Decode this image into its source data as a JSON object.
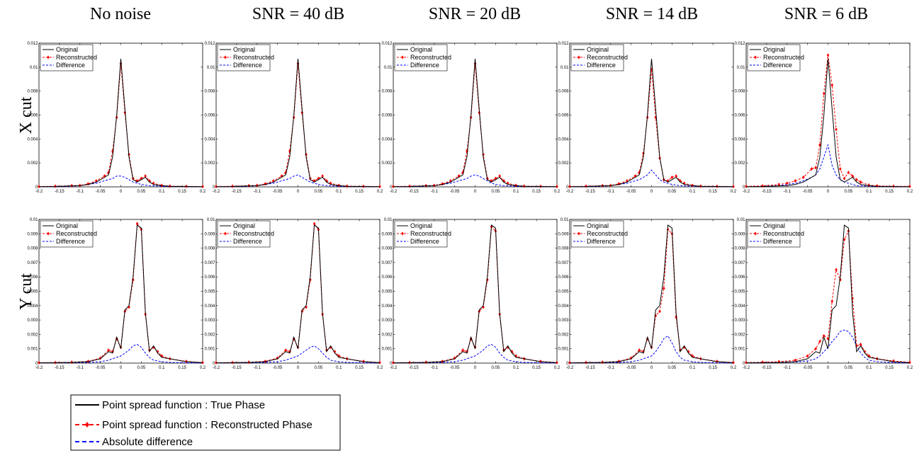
{
  "column_titles": [
    "No noise",
    "SNR = 40 dB",
    "SNR = 20 dB",
    "SNR = 14 dB",
    "SNR = 6 dB"
  ],
  "row_labels": [
    "X cut",
    "Y cut"
  ],
  "panel_legend": [
    "Original",
    "Reconstructed",
    "Difference"
  ],
  "figure_legend": [
    "Point spread function : True Phase",
    "Point spread function : Reconstructed Phase",
    "Absolute difference"
  ],
  "colors": {
    "original": "#000000",
    "reconstructed": "#ff0000",
    "difference": "#0000ff"
  },
  "chart_data": [
    {
      "type": "line",
      "row": "X cut",
      "xlim": [
        -0.2,
        0.2
      ],
      "ylim": [
        0,
        0.012
      ],
      "xticks": [
        "-0.2",
        "-0.15",
        "-0.1",
        "-0.05",
        "0",
        "0.05",
        "0.1",
        "0.15",
        "0.2"
      ],
      "yticks": [
        "0",
        "0.002",
        "0.004",
        "0.006",
        "0.008",
        "0.01",
        "0.012"
      ],
      "x": [
        -0.2,
        -0.16,
        -0.12,
        -0.1,
        -0.08,
        -0.06,
        -0.04,
        -0.03,
        -0.02,
        -0.01,
        0,
        0.01,
        0.02,
        0.03,
        0.04,
        0.05,
        0.06,
        0.07,
        0.08,
        0.1,
        0.12,
        0.16,
        0.2
      ],
      "original": [
        2e-05,
        3e-05,
        8e-05,
        0.0001,
        0.0002,
        0.0004,
        0.0008,
        0.001,
        0.0025,
        0.006,
        0.0107,
        0.0065,
        0.0025,
        0.0006,
        0.0004,
        0.0006,
        0.0008,
        0.0004,
        0.0002,
        0.0001,
        5e-05,
        3e-05,
        2e-05
      ],
      "reconstructed_by_column": [
        [
          3e-05,
          5e-05,
          0.0001,
          0.00012,
          0.00025,
          0.0005,
          0.0009,
          0.0012,
          0.003,
          0.0058,
          0.0103,
          0.0062,
          0.0027,
          0.0007,
          0.0005,
          0.0007,
          0.0009,
          0.0005,
          0.0003,
          0.00012,
          6e-05,
          4e-05,
          3e-05
        ],
        [
          3e-05,
          5e-05,
          0.0001,
          0.00012,
          0.00025,
          0.0005,
          0.0009,
          0.0012,
          0.003,
          0.0058,
          0.0103,
          0.0062,
          0.0027,
          0.0007,
          0.0005,
          0.0007,
          0.0009,
          0.0005,
          0.0003,
          0.00012,
          6e-05,
          4e-05,
          3e-05
        ],
        [
          3e-05,
          5e-05,
          0.0001,
          0.00012,
          0.00025,
          0.0005,
          0.0009,
          0.0012,
          0.003,
          0.0058,
          0.0103,
          0.0062,
          0.0027,
          0.0007,
          0.0005,
          0.0007,
          0.0009,
          0.0005,
          0.0003,
          0.00012,
          6e-05,
          4e-05,
          3e-05
        ],
        [
          3e-05,
          5e-05,
          0.0001,
          0.00012,
          0.00025,
          0.0005,
          0.0009,
          0.0012,
          0.0028,
          0.0058,
          0.0098,
          0.0058,
          0.0024,
          0.0006,
          0.0005,
          0.0008,
          0.0009,
          0.0005,
          0.0003,
          0.00012,
          6e-05,
          4e-05,
          3e-05
        ],
        [
          4e-05,
          8e-05,
          0.0002,
          0.0003,
          0.0005,
          0.0008,
          0.0015,
          0.0016,
          0.0035,
          0.0078,
          0.011,
          0.0085,
          0.0048,
          0.0015,
          0.0007,
          0.0012,
          0.0009,
          0.0006,
          0.0004,
          0.00015,
          8e-05,
          5e-05,
          4e-05
        ]
      ],
      "difference_by_column": [
        [
          1e-05,
          2e-05,
          5e-05,
          0.0001,
          0.0002,
          0.0003,
          0.0005,
          0.0006,
          0.0007,
          0.0009,
          0.0009,
          0.0008,
          0.0006,
          0.0004,
          0.0003,
          0.0002,
          0.00015,
          0.0001,
          8e-05,
          5e-05,
          3e-05,
          2e-05,
          1e-05
        ],
        [
          1e-05,
          2e-05,
          5e-05,
          0.0001,
          0.0002,
          0.0003,
          0.0005,
          0.0006,
          0.0007,
          0.0009,
          0.001,
          0.0008,
          0.0006,
          0.0004,
          0.0003,
          0.0002,
          0.00015,
          0.0001,
          8e-05,
          5e-05,
          3e-05,
          2e-05,
          1e-05
        ],
        [
          1e-05,
          2e-05,
          5e-05,
          0.0001,
          0.0002,
          0.0003,
          0.0005,
          0.0006,
          0.0007,
          0.0009,
          0.001,
          0.0009,
          0.0007,
          0.0005,
          0.0003,
          0.0002,
          0.00015,
          0.0001,
          8e-05,
          5e-05,
          3e-05,
          2e-05,
          1e-05
        ],
        [
          1e-05,
          2e-05,
          5e-05,
          0.0001,
          0.0002,
          0.0003,
          0.0005,
          0.0006,
          0.0008,
          0.001,
          0.0014,
          0.001,
          0.0006,
          0.0004,
          0.0003,
          0.0002,
          0.00015,
          0.0001,
          8e-05,
          5e-05,
          3e-05,
          2e-05,
          1e-05
        ],
        [
          2e-05,
          5e-05,
          0.0001,
          0.0002,
          0.0003,
          0.0005,
          0.0008,
          0.001,
          0.0015,
          0.0025,
          0.0035,
          0.0018,
          0.001,
          0.0006,
          0.0004,
          0.0003,
          0.0002,
          0.0001,
          8e-05,
          5e-05,
          3e-05,
          2e-05,
          1e-05
        ]
      ]
    },
    {
      "type": "line",
      "row": "Y cut",
      "xlim": [
        -0.2,
        0.2
      ],
      "ylim": [
        0,
        0.01
      ],
      "xticks": [
        "-0.2",
        "-0.15",
        "-0.1",
        "-0.05",
        "0",
        "0.05",
        "0.1",
        "0.15",
        "0.2"
      ],
      "yticks": [
        "0",
        "0.001",
        "0.002",
        "0.003",
        "0.004",
        "0.005",
        "0.006",
        "0.007",
        "0.008",
        "0.009",
        "0.01"
      ],
      "x": [
        -0.2,
        -0.16,
        -0.12,
        -0.08,
        -0.05,
        -0.03,
        -0.02,
        -0.01,
        0,
        0.01,
        0.02,
        0.03,
        0.04,
        0.05,
        0.06,
        0.07,
        0.08,
        0.09,
        0.1,
        0.12,
        0.16,
        0.2
      ],
      "original": [
        2e-05,
        3e-05,
        5e-05,
        0.0001,
        0.0003,
        0.0008,
        0.0007,
        0.0018,
        0.001,
        0.0037,
        0.004,
        0.006,
        0.0096,
        0.0094,
        0.0035,
        0.0008,
        0.0012,
        0.0007,
        0.0004,
        0.0003,
        0.0001,
        3e-05
      ],
      "reconstructed_by_column": [
        [
          3e-05,
          4e-05,
          6e-05,
          0.00012,
          0.00035,
          0.0009,
          0.0008,
          0.0017,
          0.0011,
          0.0036,
          0.0039,
          0.0058,
          0.0097,
          0.0093,
          0.0034,
          0.0009,
          0.0011,
          0.0008,
          0.0005,
          0.0003,
          0.00012,
          4e-05
        ],
        [
          3e-05,
          4e-05,
          6e-05,
          0.00012,
          0.00035,
          0.0009,
          0.0008,
          0.0017,
          0.0011,
          0.0036,
          0.0039,
          0.0058,
          0.0097,
          0.0093,
          0.0034,
          0.0009,
          0.0011,
          0.0008,
          0.0005,
          0.0003,
          0.00012,
          4e-05
        ],
        [
          3e-05,
          4e-05,
          6e-05,
          0.00012,
          0.00035,
          0.0009,
          0.0008,
          0.0017,
          0.0011,
          0.0036,
          0.0039,
          0.0058,
          0.0095,
          0.0092,
          0.0034,
          0.0009,
          0.0011,
          0.0008,
          0.0005,
          0.0003,
          0.00012,
          4e-05
        ],
        [
          3e-05,
          4e-05,
          6e-05,
          0.00012,
          0.00035,
          0.0009,
          0.0008,
          0.0017,
          0.0011,
          0.0033,
          0.0036,
          0.0052,
          0.0093,
          0.009,
          0.0032,
          0.0009,
          0.0011,
          0.0008,
          0.0005,
          0.0003,
          0.00012,
          4e-05
        ],
        [
          4e-05,
          6e-05,
          0.0001,
          0.0002,
          0.0005,
          0.001,
          0.0015,
          0.0019,
          0.0017,
          0.0043,
          0.0065,
          0.0058,
          0.0086,
          0.0092,
          0.0045,
          0.0012,
          0.0013,
          0.0008,
          0.0005,
          0.0003,
          0.00015,
          5e-05
        ]
      ],
      "difference_by_column": [
        [
          1e-05,
          2e-05,
          3e-05,
          5e-05,
          0.0001,
          0.0002,
          0.0003,
          0.0004,
          0.0005,
          0.0007,
          0.0009,
          0.0012,
          0.0013,
          0.0011,
          0.0007,
          0.0004,
          0.0002,
          0.00015,
          0.0001,
          5e-05,
          2e-05,
          1e-05
        ],
        [
          1e-05,
          2e-05,
          3e-05,
          5e-05,
          0.0001,
          0.0002,
          0.0003,
          0.0004,
          0.0005,
          0.0007,
          0.0009,
          0.0011,
          0.0012,
          0.001,
          0.0007,
          0.0004,
          0.0002,
          0.00015,
          0.0001,
          5e-05,
          2e-05,
          1e-05
        ],
        [
          1e-05,
          2e-05,
          3e-05,
          5e-05,
          0.0001,
          0.0002,
          0.0003,
          0.0004,
          0.0005,
          0.0007,
          0.0009,
          0.0012,
          0.0013,
          0.0011,
          0.0007,
          0.0004,
          0.0002,
          0.00015,
          0.0001,
          5e-05,
          2e-05,
          1e-05
        ],
        [
          1e-05,
          2e-05,
          3e-05,
          5e-05,
          0.0001,
          0.0002,
          0.0003,
          0.0004,
          0.0005,
          0.0008,
          0.0012,
          0.0017,
          0.0019,
          0.0014,
          0.0008,
          0.0004,
          0.0002,
          0.00015,
          0.0001,
          5e-05,
          2e-05,
          1e-05
        ],
        [
          1e-05,
          2e-05,
          4e-05,
          8e-05,
          0.00015,
          0.0003,
          0.0005,
          0.0008,
          0.0011,
          0.0015,
          0.0018,
          0.0022,
          0.0023,
          0.0022,
          0.0018,
          0.0012,
          0.0007,
          0.0004,
          0.0002,
          0.0001,
          3e-05,
          1e-05
        ]
      ]
    }
  ]
}
